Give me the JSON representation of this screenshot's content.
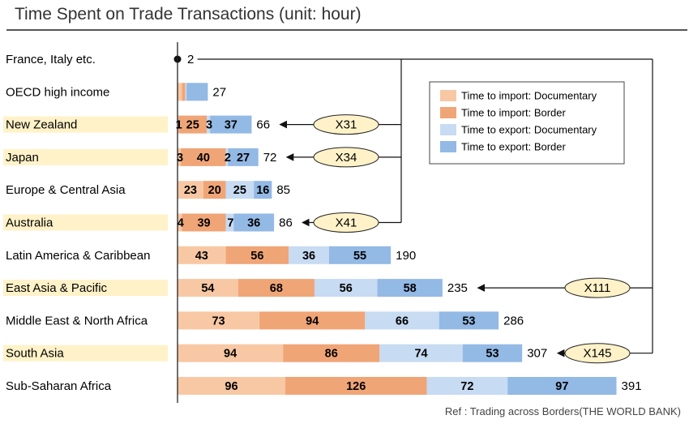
{
  "title": "Time Spent on Trade Transactions (unit: hour)",
  "source": "Ref : Trading across Borders(THE WORLD BANK)",
  "chart_data": {
    "type": "bar",
    "orientation": "horizontal",
    "stacked": true,
    "title": "Time Spent on Trade Transactions (unit: hour)",
    "xlabel": "",
    "ylabel": "",
    "grid": false,
    "legend_position": "top-right",
    "categories": [
      "France, Italy etc.",
      "OECD high income",
      "New Zealand",
      "Japan",
      "Europe & Central Asia",
      "Australia",
      "Latin America & Caribbean",
      "East Asia & Pacific",
      "Middle East & North Africa",
      "South Asia",
      "Sub-Saharan Africa"
    ],
    "highlighted": [
      false,
      false,
      true,
      true,
      false,
      true,
      false,
      true,
      false,
      true,
      false
    ],
    "series": [
      {
        "name": "Time to import: Documentary",
        "color": "#f8c8a4",
        "values": [
          0.5,
          4,
          1,
          3,
          23,
          4,
          43,
          54,
          73,
          94,
          96
        ],
        "labels": [
          "",
          "",
          "1",
          "3",
          "23",
          "4",
          "43",
          "54",
          "73",
          "94",
          "96"
        ]
      },
      {
        "name": "Time to import: Border",
        "color": "#f0a577",
        "values": [
          0.5,
          3,
          25,
          40,
          20,
          39,
          56,
          68,
          94,
          86,
          126
        ],
        "labels": [
          "",
          "",
          "25",
          "40",
          "20",
          "39",
          "56",
          "68",
          "94",
          "86",
          "126"
        ]
      },
      {
        "name": "Time to export: Documentary",
        "color": "#c7dbf2",
        "values": [
          0.5,
          1,
          3,
          2,
          25,
          7,
          36,
          56,
          66,
          74,
          72
        ],
        "labels": [
          "",
          "",
          "3",
          "2",
          "25",
          "7",
          "36",
          "56",
          "66",
          "74",
          "72"
        ]
      },
      {
        "name": "Time to export: Border",
        "color": "#93b9e5",
        "values": [
          0.5,
          19,
          37,
          27,
          16,
          36,
          55,
          58,
          53,
          53,
          97
        ],
        "labels": [
          "",
          "",
          "37",
          "27",
          "16",
          "36",
          "55",
          "58",
          "53",
          "53",
          "97"
        ]
      }
    ],
    "totals": [
      2,
      27,
      66,
      72,
      85,
      86,
      190,
      235,
      286,
      307,
      391
    ],
    "xlim": [
      0,
      391
    ],
    "comparisons": [
      {
        "category": "New Zealand",
        "label": "X31"
      },
      {
        "category": "Japan",
        "label": "X34"
      },
      {
        "category": "Australia",
        "label": "X41"
      },
      {
        "category": "East Asia & Pacific",
        "label": "X111"
      },
      {
        "category": "South Asia",
        "label": "X145"
      }
    ]
  }
}
